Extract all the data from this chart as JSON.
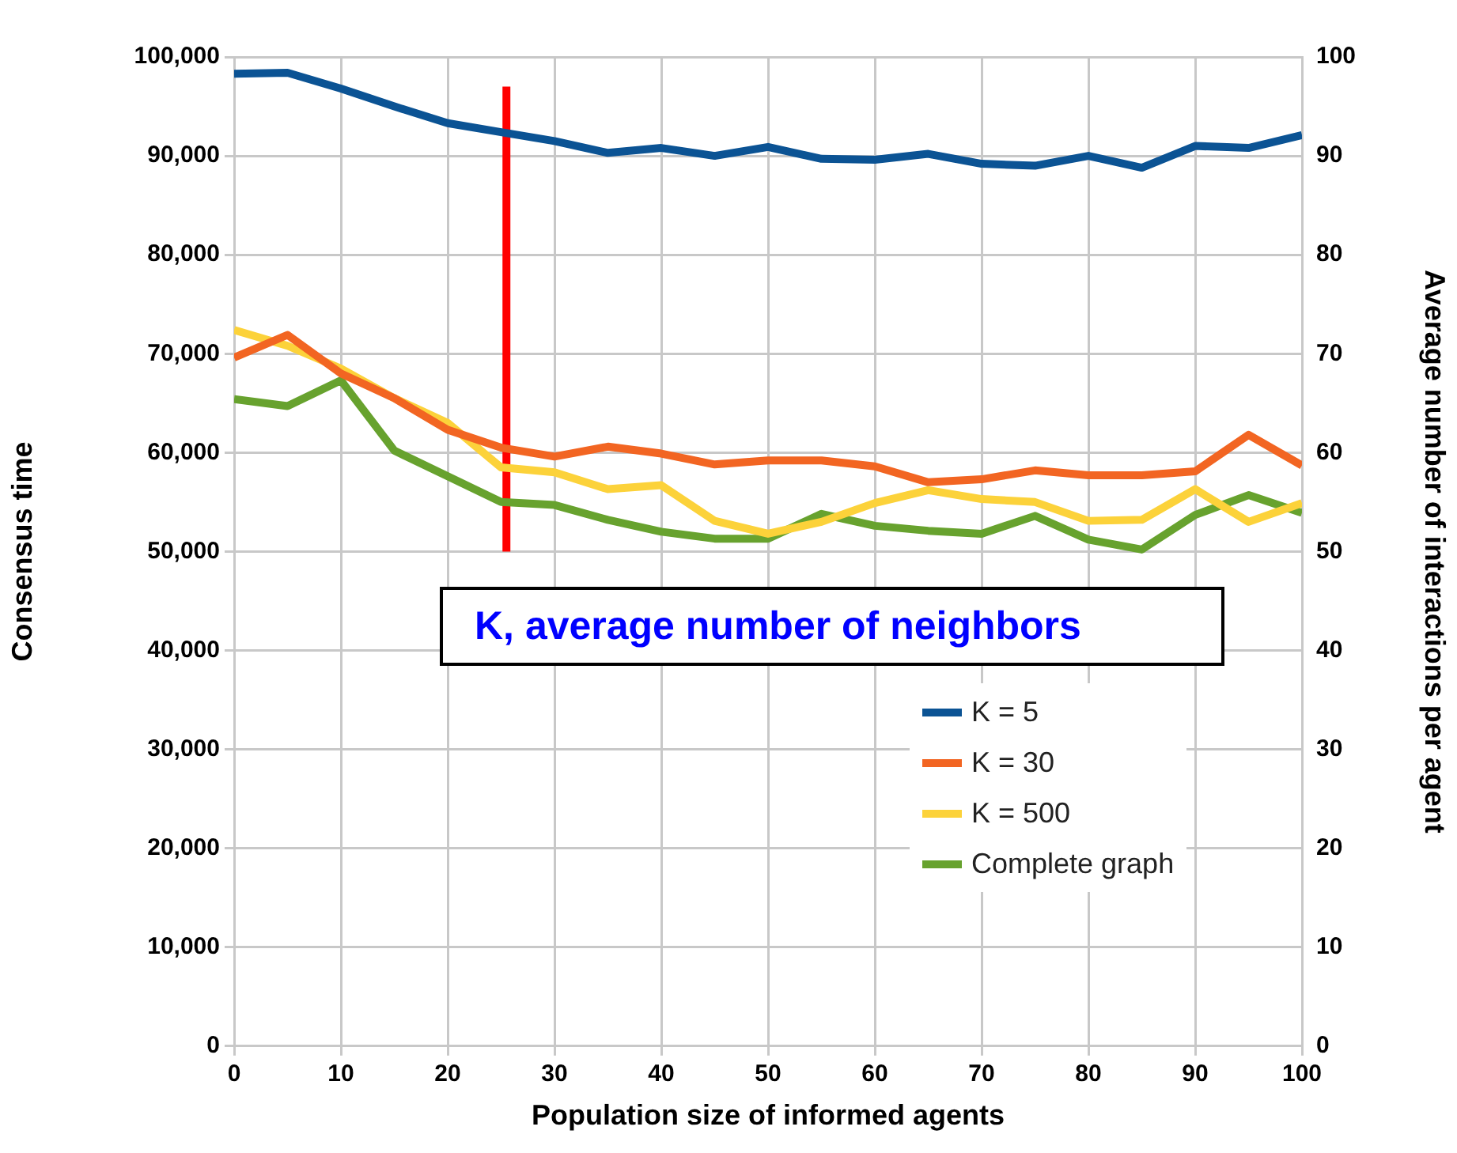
{
  "chart_data": {
    "type": "line",
    "xlabel": "Population size of informed agents",
    "ylabel": "Consensus time",
    "y2label": "Average number of interactions per agent",
    "annotations": [
      "K, average number of neighbors"
    ],
    "x": [
      0,
      5,
      10,
      15,
      20,
      25,
      30,
      35,
      40,
      45,
      50,
      55,
      60,
      65,
      70,
      75,
      80,
      85,
      90,
      95,
      100
    ],
    "xlim": [
      0,
      100
    ],
    "xticks": [
      0,
      10,
      20,
      30,
      40,
      50,
      60,
      70,
      80,
      90,
      100
    ],
    "ylim": [
      0,
      100000
    ],
    "yticks": [
      {
        "value": 0,
        "label": "0"
      },
      {
        "value": 10000,
        "label": "10,000"
      },
      {
        "value": 20000,
        "label": "20,000"
      },
      {
        "value": 30000,
        "label": "30,000"
      },
      {
        "value": 40000,
        "label": "40,000"
      },
      {
        "value": 50000,
        "label": "50,000"
      },
      {
        "value": 60000,
        "label": "60,000"
      },
      {
        "value": 70000,
        "label": "70,000"
      },
      {
        "value": 80000,
        "label": "80,000"
      },
      {
        "value": 90000,
        "label": "90,000"
      },
      {
        "value": 100000,
        "label": "100,000"
      }
    ],
    "y2lim": [
      0,
      100
    ],
    "y2ticks": [
      0,
      10,
      20,
      30,
      40,
      50,
      60,
      70,
      80,
      90,
      100
    ],
    "grid": true,
    "legend": "right",
    "marker": "none",
    "line_style": "solid",
    "series": [
      {
        "name": "K = 5",
        "color": "#0b5394",
        "values": [
          98300,
          98400,
          96800,
          95000,
          93300,
          92400,
          91500,
          90300,
          90800,
          90000,
          90900,
          89700,
          89600,
          90200,
          89200,
          89000,
          90000,
          88800,
          91000,
          90800,
          92100
        ]
      },
      {
        "name": "K = 30",
        "color": "#f26522",
        "values": [
          69600,
          71900,
          68000,
          65500,
          62300,
          60500,
          59600,
          60600,
          59900,
          58800,
          59200,
          59200,
          58600,
          57000,
          57300,
          58200,
          57700,
          57700,
          58100,
          61800,
          58700
        ]
      },
      {
        "name": "K = 500",
        "color": "#fcd23a",
        "values": [
          72400,
          70800,
          68500,
          65500,
          63000,
          58500,
          58000,
          56300,
          56700,
          53100,
          51800,
          53000,
          54900,
          56200,
          55300,
          55000,
          53100,
          53200,
          56300,
          53000,
          54900
        ]
      },
      {
        "name": "Complete graph",
        "color": "#67a22e",
        "values": [
          65400,
          64700,
          67300,
          60200,
          57600,
          55000,
          54700,
          53200,
          52000,
          51300,
          51300,
          53800,
          52600,
          52100,
          51800,
          53600,
          51200,
          50200,
          53700,
          55700,
          53900
        ]
      },
      {
        "type": "line",
        "color": "#ff0000",
        "x": [
          25.5,
          25.5
        ],
        "values": [
          50000,
          97000
        ]
      }
    ]
  }
}
